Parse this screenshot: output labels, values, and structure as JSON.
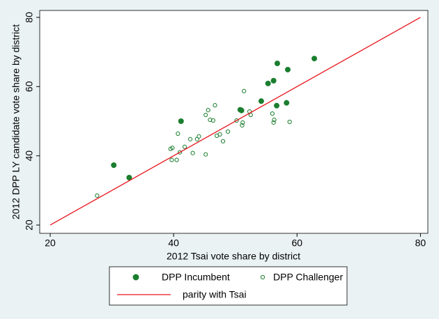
{
  "chart_data": {
    "type": "scatter",
    "x_label": "2012 Tsai vote share by district",
    "y_label": "2012 DPP LY candidate vote share by district",
    "xlim": [
      18.3,
      81.2
    ],
    "ylim": [
      17.6,
      82.0
    ],
    "xticks": [
      20,
      40,
      60,
      80
    ],
    "yticks": [
      20,
      40,
      60,
      80
    ],
    "series": [
      {
        "name": "DPP Incumbent",
        "color": "#1a7e2e",
        "style": "filled",
        "x": [
          30.3,
          32.8,
          41.2,
          50.8,
          51.0,
          54.2,
          55.3,
          56.2,
          56.8,
          56.7,
          58.3,
          58.5,
          62.8
        ],
        "values": [
          37.3,
          33.7,
          50.0,
          53.3,
          53.1,
          55.8,
          60.9,
          61.7,
          66.7,
          54.5,
          55.3,
          64.9,
          68.1
        ]
      },
      {
        "name": "DPP Challenger",
        "color": "#1a7e2e",
        "style": "hollow",
        "x": [
          27.6,
          39.5,
          39.8,
          40.7,
          39.7,
          40.5,
          41.0,
          41.8,
          42.7,
          43.1,
          44.1,
          43.8,
          45.2,
          45.2,
          45.6,
          45.9,
          46.4,
          46.7,
          47.0,
          47.5,
          48.0,
          48.8,
          50.2,
          51.1,
          51.2,
          51.4,
          52.3,
          52.5,
          56.0,
          56.3,
          56.2,
          58.8
        ],
        "values": [
          28.5,
          42.0,
          42.3,
          46.4,
          38.8,
          38.8,
          41.0,
          42.6,
          44.8,
          40.8,
          45.6,
          44.8,
          40.4,
          51.8,
          53.2,
          50.4,
          50.2,
          54.6,
          45.8,
          46.2,
          44.2,
          47.0,
          50.2,
          48.8,
          49.6,
          58.7,
          52.8,
          51.8,
          52.2,
          50.4,
          49.6,
          49.8
        ]
      },
      {
        "name": "parity with Tsai",
        "color": "#e8141b",
        "style": "line",
        "x": [
          20,
          80
        ],
        "values": [
          20,
          80
        ]
      }
    ]
  }
}
